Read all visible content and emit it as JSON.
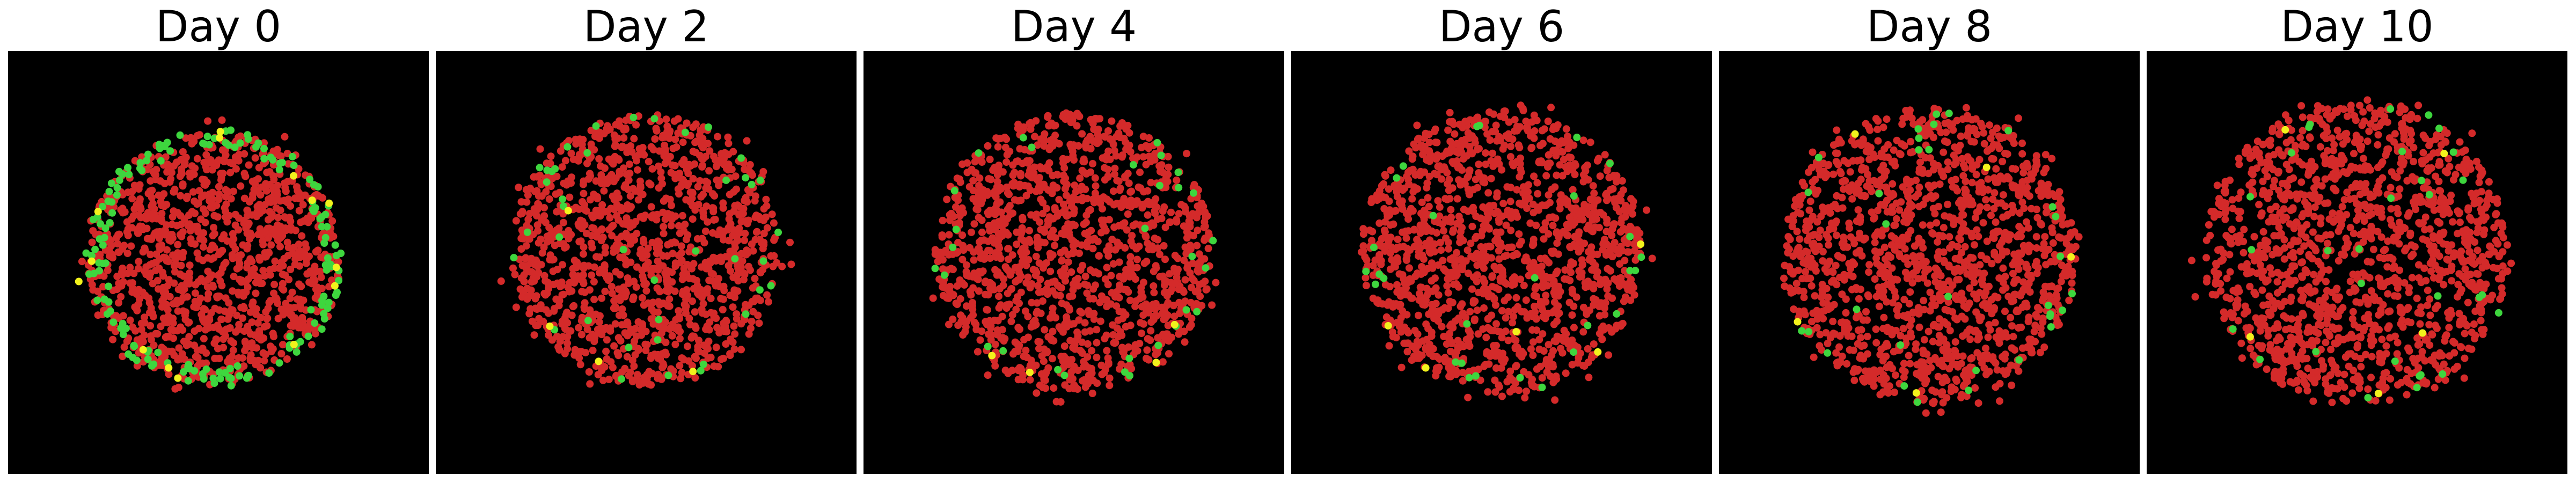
{
  "chart_data": [
    {
      "type": "scatter",
      "title": "Day 0",
      "day": 0,
      "background": "#000000",
      "grid": false,
      "legend": "none",
      "xlim": [
        -1,
        1
      ],
      "ylim": [
        -1,
        1
      ],
      "cluster": {
        "center": [
          -0.02,
          0.02
        ],
        "radius": 0.6,
        "n_red": 1150,
        "n_green": 160,
        "n_yellow": 14,
        "green_on_rim": true
      },
      "colors": {
        "red": "#d42a2a",
        "green": "#3ed63e",
        "yellow": "#f2f21c"
      }
    },
    {
      "type": "scatter",
      "title": "Day 2",
      "day": 2,
      "background": "#000000",
      "grid": false,
      "legend": "none",
      "xlim": [
        -1,
        1
      ],
      "ylim": [
        -1,
        1
      ],
      "cluster": {
        "center": [
          0.0,
          0.06
        ],
        "radius": 0.64,
        "n_red": 1250,
        "n_green": 40,
        "n_yellow": 4,
        "green_on_rim": false
      },
      "colors": {
        "red": "#d42a2a",
        "green": "#3ed63e",
        "yellow": "#f2f21c"
      }
    },
    {
      "type": "scatter",
      "title": "Day 4",
      "day": 4,
      "background": "#000000",
      "grid": false,
      "legend": "none",
      "xlim": [
        -1,
        1
      ],
      "ylim": [
        -1,
        1
      ],
      "cluster": {
        "center": [
          0.0,
          0.05
        ],
        "radius": 0.66,
        "n_red": 1300,
        "n_green": 30,
        "n_yellow": 4,
        "green_on_rim": false
      },
      "colors": {
        "red": "#d42a2a",
        "green": "#3ed63e",
        "yellow": "#f2f21c"
      }
    },
    {
      "type": "scatter",
      "title": "Day 6",
      "day": 6,
      "background": "#000000",
      "grid": false,
      "legend": "none",
      "xlim": [
        -1,
        1
      ],
      "ylim": [
        -1,
        1
      ],
      "cluster": {
        "center": [
          0.0,
          0.05
        ],
        "radius": 0.67,
        "n_red": 1350,
        "n_green": 28,
        "n_yellow": 5,
        "green_on_rim": false
      },
      "colors": {
        "red": "#d42a2a",
        "green": "#3ed63e",
        "yellow": "#f2f21c"
      }
    },
    {
      "type": "scatter",
      "title": "Day 8",
      "day": 8,
      "background": "#000000",
      "grid": false,
      "legend": "none",
      "xlim": [
        -1,
        1
      ],
      "ylim": [
        -1,
        1
      ],
      "cluster": {
        "center": [
          0.0,
          0.03
        ],
        "radius": 0.7,
        "n_red": 1400,
        "n_green": 32,
        "n_yellow": 5,
        "green_on_rim": false
      },
      "colors": {
        "red": "#d42a2a",
        "green": "#3ed63e",
        "yellow": "#f2f21c"
      }
    },
    {
      "type": "scatter",
      "title": "Day 10",
      "day": 10,
      "background": "#000000",
      "grid": false,
      "legend": "none",
      "xlim": [
        -1,
        1
      ],
      "ylim": [
        -1,
        1
      ],
      "cluster": {
        "center": [
          0.0,
          0.05
        ],
        "radius": 0.72,
        "n_red": 1400,
        "n_green": 30,
        "n_yellow": 5,
        "green_on_rim": false
      },
      "colors": {
        "red": "#d42a2a",
        "green": "#3ed63e",
        "yellow": "#f2f21c"
      }
    }
  ]
}
